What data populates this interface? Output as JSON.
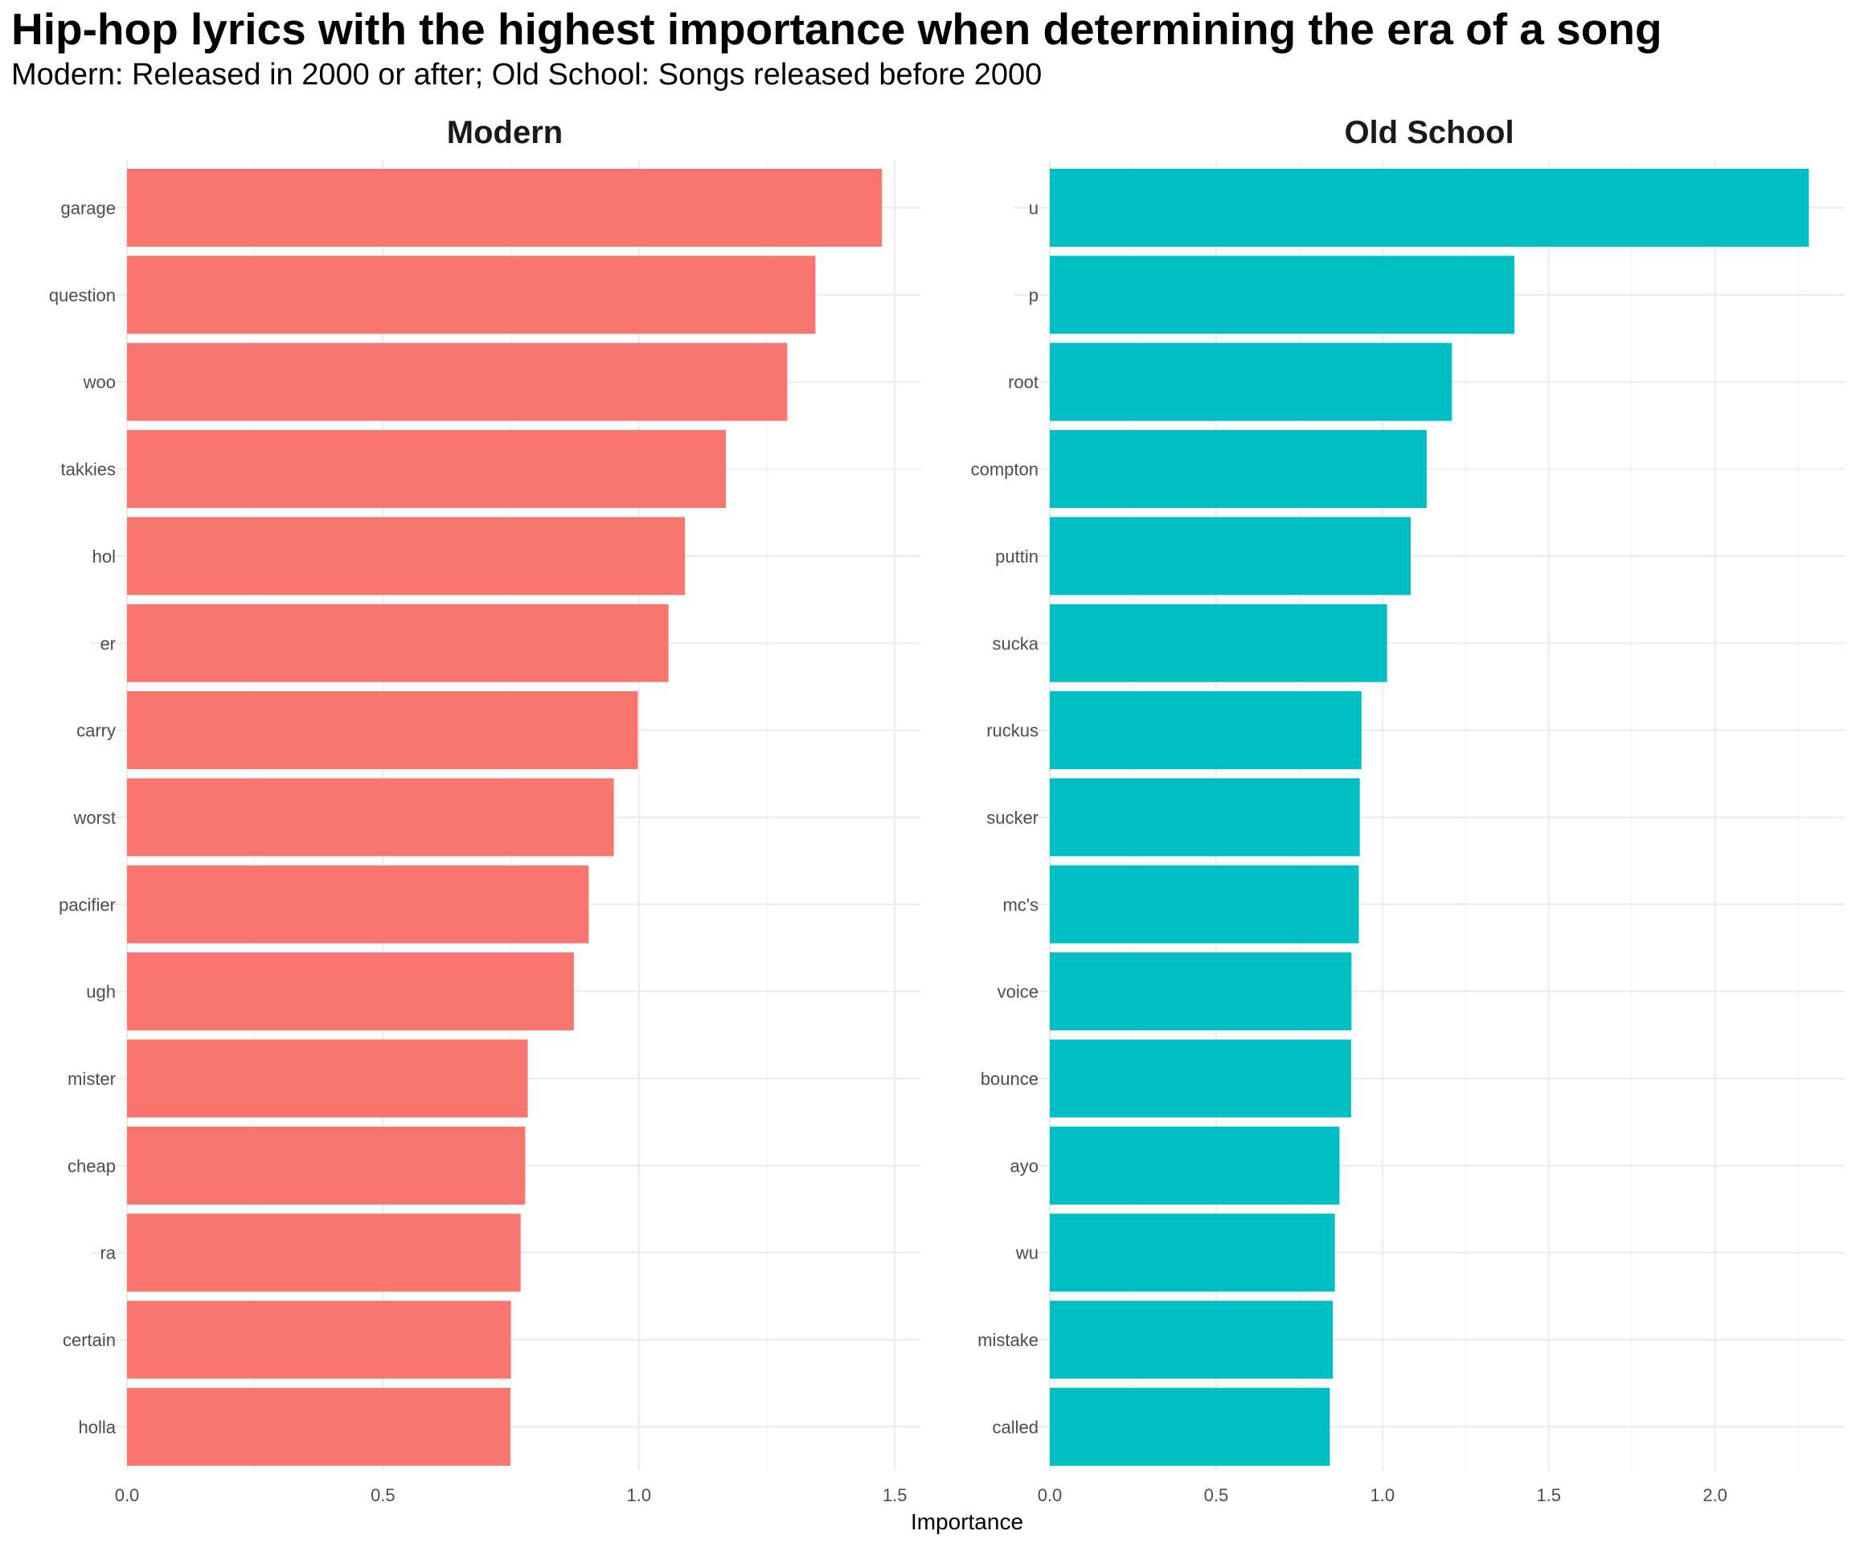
{
  "chart_data": {
    "type": "bar",
    "orientation": "horizontal",
    "title": "Hip-hop lyrics with the highest importance when determining the era of a song",
    "subtitle": "Modern: Released in 2000 or after; Old School: Songs released before 2000",
    "xlabel": "Importance",
    "ylabel": "",
    "grid": true,
    "legend": "none",
    "facets": [
      {
        "name": "Modern",
        "color": "#F8766D",
        "xlim": [
          0,
          1.55
        ],
        "ticks": [
          0.0,
          0.5,
          1.0,
          1.5
        ],
        "tick_labels": [
          "0.0",
          "0.5",
          "1.0",
          "1.5"
        ],
        "categories": [
          "garage",
          "question",
          "woo",
          "takkies",
          "hol",
          "er",
          "carry",
          "worst",
          "pacifier",
          "ugh",
          "mister",
          "cheap",
          "ra",
          "certain",
          "holla"
        ],
        "values": [
          1.475,
          1.345,
          1.29,
          1.17,
          1.09,
          1.058,
          0.998,
          0.951,
          0.902,
          0.873,
          0.783,
          0.778,
          0.769,
          0.75,
          0.749
        ]
      },
      {
        "name": "Old School",
        "color": "#00BFC4",
        "xlim": [
          0,
          2.39
        ],
        "ticks": [
          0.0,
          0.5,
          1.0,
          1.5,
          2.0
        ],
        "tick_labels": [
          "0.0",
          "0.5",
          "1.0",
          "1.5",
          "2.0"
        ],
        "categories": [
          "u",
          "p",
          "root",
          "compton",
          "puttin",
          "sucka",
          "ruckus",
          "sucker",
          "mc's",
          "voice",
          "bounce",
          "ayo",
          "wu",
          "mistake",
          "called"
        ],
        "values": [
          2.282,
          1.397,
          1.209,
          1.133,
          1.085,
          1.014,
          0.937,
          0.932,
          0.929,
          0.907,
          0.906,
          0.871,
          0.857,
          0.851,
          0.842
        ]
      }
    ]
  }
}
